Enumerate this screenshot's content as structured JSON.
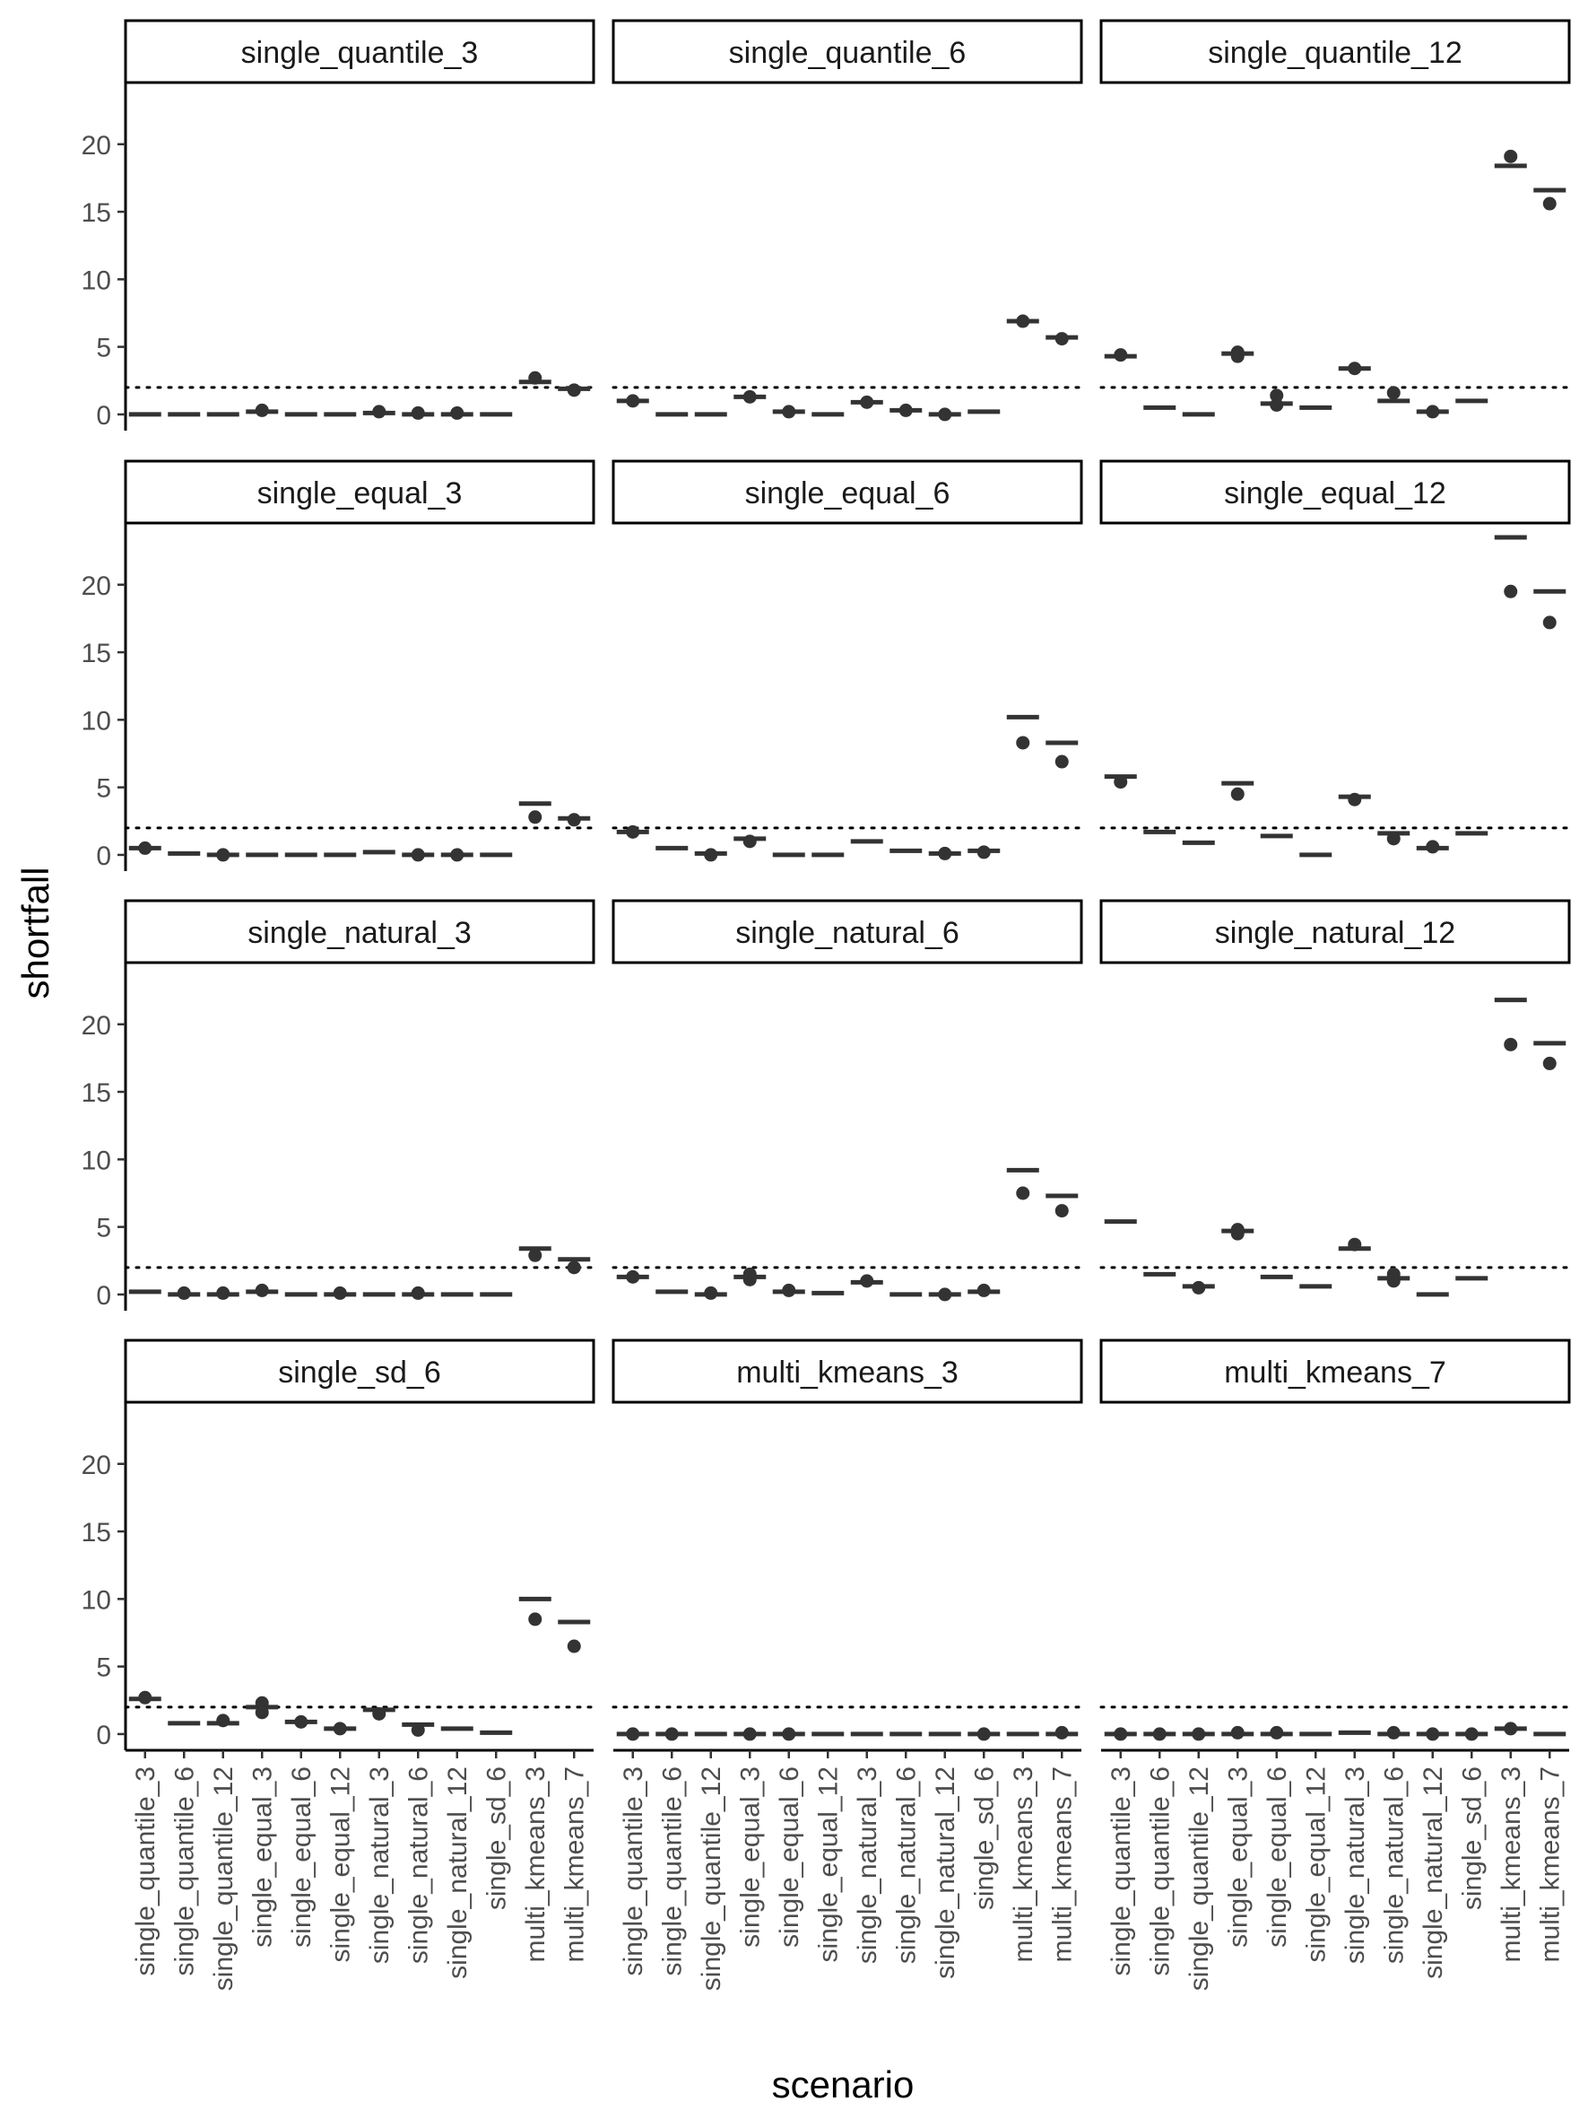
{
  "chart_data": {
    "type": "box",
    "xlabel": "scenario",
    "ylabel": "shortfall",
    "ylim": [
      -1.2,
      24.5
    ],
    "y_ticks": [
      0,
      5,
      10,
      15,
      20
    ],
    "reference_line": {
      "y": 2,
      "style": "dotted"
    },
    "grid": false,
    "categories": [
      "single_quantile_3",
      "single_quantile_6",
      "single_quantile_12",
      "single_equal_3",
      "single_equal_6",
      "single_equal_12",
      "single_natural_3",
      "single_natural_6",
      "single_natural_12",
      "single_sd_6",
      "multi_kmeans_3",
      "multi_kmeans_7"
    ],
    "panels": [
      {
        "title": "single_quantile_3",
        "boxes": [
          {
            "median": 0.0,
            "outliers": []
          },
          {
            "median": 0.0,
            "outliers": []
          },
          {
            "median": 0.0,
            "outliers": []
          },
          {
            "median": 0.2,
            "outliers": [
              0.3
            ]
          },
          {
            "median": 0.0,
            "outliers": []
          },
          {
            "median": 0.0,
            "outliers": []
          },
          {
            "median": 0.1,
            "outliers": [
              0.2
            ]
          },
          {
            "median": 0.0,
            "outliers": [
              0.1
            ]
          },
          {
            "median": 0.0,
            "outliers": [
              0.1
            ]
          },
          {
            "median": 0.0,
            "outliers": []
          },
          {
            "median": 2.4,
            "outliers": [
              2.7
            ]
          },
          {
            "median": 1.9,
            "outliers": [
              1.8
            ]
          }
        ]
      },
      {
        "title": "single_quantile_6",
        "boxes": [
          {
            "median": 1.0,
            "outliers": [
              1.0
            ]
          },
          {
            "median": 0.0,
            "outliers": []
          },
          {
            "median": 0.0,
            "outliers": []
          },
          {
            "median": 1.3,
            "outliers": [
              1.3
            ]
          },
          {
            "median": 0.2,
            "outliers": [
              0.2
            ]
          },
          {
            "median": 0.0,
            "outliers": []
          },
          {
            "median": 0.9,
            "outliers": [
              0.9
            ]
          },
          {
            "median": 0.3,
            "outliers": [
              0.3
            ]
          },
          {
            "median": 0.0,
            "outliers": [
              0.0
            ]
          },
          {
            "median": 0.2,
            "outliers": []
          },
          {
            "median": 6.9,
            "outliers": [
              6.9
            ]
          },
          {
            "median": 5.7,
            "outliers": [
              5.6
            ]
          }
        ]
      },
      {
        "title": "single_quantile_12",
        "boxes": [
          {
            "median": 4.3,
            "outliers": [
              4.4
            ]
          },
          {
            "median": 0.5,
            "outliers": []
          },
          {
            "median": 0.0,
            "outliers": []
          },
          {
            "median": 4.5,
            "outliers": [
              4.3,
              4.6
            ]
          },
          {
            "median": 0.8,
            "outliers": [
              1.4,
              0.7
            ]
          },
          {
            "median": 0.5,
            "outliers": []
          },
          {
            "median": 3.4,
            "outliers": [
              3.4
            ]
          },
          {
            "median": 1.0,
            "outliers": [
              1.6
            ]
          },
          {
            "median": 0.2,
            "outliers": [
              0.2
            ]
          },
          {
            "median": 1.0,
            "outliers": []
          },
          {
            "median": 18.4,
            "outliers": [
              19.1
            ]
          },
          {
            "median": 16.6,
            "outliers": [
              15.6
            ]
          }
        ]
      },
      {
        "title": "single_equal_3",
        "boxes": [
          {
            "median": 0.5,
            "outliers": [
              0.5
            ]
          },
          {
            "median": 0.1,
            "outliers": []
          },
          {
            "median": 0.0,
            "outliers": [
              0.0
            ]
          },
          {
            "median": 0.0,
            "outliers": []
          },
          {
            "median": 0.0,
            "outliers": []
          },
          {
            "median": 0.0,
            "outliers": []
          },
          {
            "median": 0.2,
            "outliers": []
          },
          {
            "median": 0.0,
            "outliers": [
              0.0
            ]
          },
          {
            "median": 0.0,
            "outliers": [
              0.0
            ]
          },
          {
            "median": 0.0,
            "outliers": []
          },
          {
            "median": 3.8,
            "outliers": [
              2.8
            ]
          },
          {
            "median": 2.7,
            "outliers": [
              2.6
            ]
          }
        ]
      },
      {
        "title": "single_equal_6",
        "boxes": [
          {
            "median": 1.7,
            "outliers": [
              1.7
            ]
          },
          {
            "median": 0.5,
            "outliers": []
          },
          {
            "median": 0.1,
            "outliers": [
              0.0
            ]
          },
          {
            "median": 1.2,
            "outliers": [
              1.0
            ]
          },
          {
            "median": 0.0,
            "outliers": []
          },
          {
            "median": 0.0,
            "outliers": []
          },
          {
            "median": 1.0,
            "outliers": []
          },
          {
            "median": 0.3,
            "outliers": []
          },
          {
            "median": 0.1,
            "outliers": [
              0.1
            ]
          },
          {
            "median": 0.3,
            "outliers": [
              0.2
            ]
          },
          {
            "median": 10.2,
            "outliers": [
              8.3
            ]
          },
          {
            "median": 8.3,
            "outliers": [
              6.9
            ]
          }
        ]
      },
      {
        "title": "single_equal_12",
        "boxes": [
          {
            "median": 5.8,
            "outliers": [
              5.4
            ]
          },
          {
            "median": 1.7,
            "outliers": []
          },
          {
            "median": 0.9,
            "outliers": []
          },
          {
            "median": 5.3,
            "outliers": [
              4.5
            ]
          },
          {
            "median": 1.4,
            "outliers": []
          },
          {
            "median": 0.0,
            "outliers": []
          },
          {
            "median": 4.3,
            "outliers": [
              4.1
            ]
          },
          {
            "median": 1.6,
            "outliers": [
              1.2
            ]
          },
          {
            "median": 0.5,
            "outliers": [
              0.6
            ]
          },
          {
            "median": 1.6,
            "outliers": []
          },
          {
            "median": 23.5,
            "outliers": [
              19.5
            ]
          },
          {
            "median": 19.5,
            "outliers": [
              17.2
            ]
          }
        ]
      },
      {
        "title": "single_natural_3",
        "boxes": [
          {
            "median": 0.2,
            "outliers": []
          },
          {
            "median": 0.0,
            "outliers": [
              0.1
            ]
          },
          {
            "median": 0.0,
            "outliers": [
              0.1
            ]
          },
          {
            "median": 0.2,
            "outliers": [
              0.3
            ]
          },
          {
            "median": 0.0,
            "outliers": []
          },
          {
            "median": 0.0,
            "outliers": [
              0.1
            ]
          },
          {
            "median": 0.0,
            "outliers": []
          },
          {
            "median": 0.0,
            "outliers": [
              0.1
            ]
          },
          {
            "median": 0.0,
            "outliers": []
          },
          {
            "median": 0.0,
            "outliers": []
          },
          {
            "median": 3.4,
            "outliers": [
              2.9
            ]
          },
          {
            "median": 2.6,
            "outliers": [
              2.0
            ]
          }
        ]
      },
      {
        "title": "single_natural_6",
        "boxes": [
          {
            "median": 1.3,
            "outliers": [
              1.3
            ]
          },
          {
            "median": 0.2,
            "outliers": []
          },
          {
            "median": 0.0,
            "outliers": [
              0.1
            ]
          },
          {
            "median": 1.3,
            "outliers": [
              1.1,
              1.5
            ]
          },
          {
            "median": 0.2,
            "outliers": [
              0.3
            ]
          },
          {
            "median": 0.1,
            "outliers": []
          },
          {
            "median": 0.9,
            "outliers": [
              1.0
            ]
          },
          {
            "median": 0.0,
            "outliers": []
          },
          {
            "median": 0.0,
            "outliers": [
              0.0
            ]
          },
          {
            "median": 0.2,
            "outliers": [
              0.3
            ]
          },
          {
            "median": 9.2,
            "outliers": [
              7.5
            ]
          },
          {
            "median": 7.3,
            "outliers": [
              6.2
            ]
          }
        ]
      },
      {
        "title": "single_natural_12",
        "boxes": [
          {
            "median": 5.4,
            "outliers": []
          },
          {
            "median": 1.5,
            "outliers": []
          },
          {
            "median": 0.6,
            "outliers": [
              0.5
            ]
          },
          {
            "median": 4.7,
            "outliers": [
              4.8,
              4.5
            ]
          },
          {
            "median": 1.3,
            "outliers": []
          },
          {
            "median": 0.6,
            "outliers": []
          },
          {
            "median": 3.4,
            "outliers": [
              3.7
            ]
          },
          {
            "median": 1.2,
            "outliers": [
              1.5,
              1.0
            ]
          },
          {
            "median": 0.0,
            "outliers": []
          },
          {
            "median": 1.2,
            "outliers": []
          },
          {
            "median": 21.8,
            "outliers": [
              18.5
            ]
          },
          {
            "median": 18.6,
            "outliers": [
              17.1
            ]
          }
        ]
      },
      {
        "title": "single_sd_6",
        "boxes": [
          {
            "median": 2.6,
            "outliers": [
              2.7
            ]
          },
          {
            "median": 0.8,
            "outliers": []
          },
          {
            "median": 0.8,
            "outliers": [
              1.0
            ]
          },
          {
            "median": 2.0,
            "outliers": [
              2.3,
              1.6
            ]
          },
          {
            "median": 0.9,
            "outliers": [
              0.9
            ]
          },
          {
            "median": 0.4,
            "outliers": [
              0.4
            ]
          },
          {
            "median": 1.8,
            "outliers": [
              1.5
            ]
          },
          {
            "median": 0.7,
            "outliers": [
              0.3
            ]
          },
          {
            "median": 0.4,
            "outliers": []
          },
          {
            "median": 0.1,
            "outliers": []
          },
          {
            "median": 10.0,
            "outliers": [
              8.5
            ]
          },
          {
            "median": 8.3,
            "outliers": [
              6.5
            ]
          }
        ]
      },
      {
        "title": "multi_kmeans_3",
        "boxes": [
          {
            "median": 0.0,
            "outliers": [
              0.0
            ]
          },
          {
            "median": 0.0,
            "outliers": [
              0.0
            ]
          },
          {
            "median": 0.0,
            "outliers": []
          },
          {
            "median": 0.0,
            "outliers": [
              0.0
            ]
          },
          {
            "median": 0.0,
            "outliers": [
              0.0
            ]
          },
          {
            "median": 0.0,
            "outliers": []
          },
          {
            "median": 0.0,
            "outliers": []
          },
          {
            "median": 0.0,
            "outliers": []
          },
          {
            "median": 0.0,
            "outliers": []
          },
          {
            "median": 0.0,
            "outliers": [
              0.0
            ]
          },
          {
            "median": 0.0,
            "outliers": []
          },
          {
            "median": 0.0,
            "outliers": [
              0.1
            ]
          }
        ]
      },
      {
        "title": "multi_kmeans_7",
        "boxes": [
          {
            "median": 0.0,
            "outliers": [
              0.0
            ]
          },
          {
            "median": 0.0,
            "outliers": [
              0.0
            ]
          },
          {
            "median": 0.0,
            "outliers": [
              0.0
            ]
          },
          {
            "median": 0.0,
            "outliers": [
              0.1
            ]
          },
          {
            "median": 0.0,
            "outliers": [
              0.1
            ]
          },
          {
            "median": 0.0,
            "outliers": []
          },
          {
            "median": 0.1,
            "outliers": []
          },
          {
            "median": 0.0,
            "outliers": [
              0.1
            ]
          },
          {
            "median": 0.0,
            "outliers": [
              0.0
            ]
          },
          {
            "median": 0.0,
            "outliers": [
              0.0
            ]
          },
          {
            "median": 0.4,
            "outliers": [
              0.4
            ]
          },
          {
            "median": 0.0,
            "outliers": []
          }
        ]
      }
    ]
  }
}
